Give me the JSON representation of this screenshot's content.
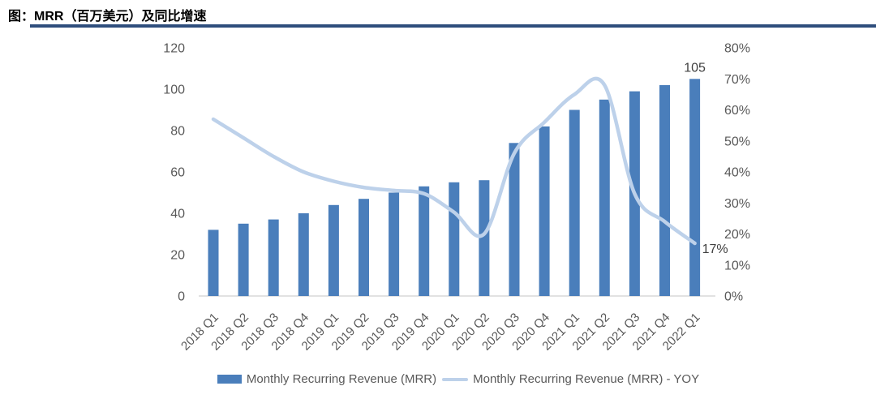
{
  "header": {
    "title": "图：MRR（百万美元）及同比增速"
  },
  "colors": {
    "bar": "#4a7ebb",
    "line": "#bdd1ea",
    "header_rule": "#2e4d7c",
    "axis_text": "#595959",
    "data_label_text": "#404040",
    "baseline": "#d9d9d9",
    "title_text": "#000000"
  },
  "chart_data": {
    "type": "combo-bar-line",
    "title": "图：MRR（百万美元）及同比增速",
    "xlabel": "",
    "ylabel_left": "",
    "ylabel_right": "",
    "gridlines": false,
    "smooth_line": true,
    "legend_position": "bottom",
    "categories": [
      "2018 Q1",
      "2018 Q2",
      "2018 Q3",
      "2018 Q4",
      "2019 Q1",
      "2019 Q2",
      "2019 Q3",
      "2019 Q4",
      "2020 Q1",
      "2020 Q2",
      "2020 Q3",
      "2020 Q4",
      "2021 Q1",
      "2021 Q2",
      "2021 Q3",
      "2021 Q4",
      "2022 Q1"
    ],
    "series": [
      {
        "name": "Monthly Recurring Revenue (MRR)",
        "type": "bar",
        "axis": "left",
        "unit": "millions USD",
        "values": [
          32,
          35,
          37,
          40,
          44,
          47,
          50,
          53,
          55,
          56,
          74,
          82,
          90,
          95,
          99,
          102,
          105
        ]
      },
      {
        "name": "Monthly Recurring Revenue (MRR) - YOY",
        "type": "line",
        "axis": "right",
        "unit": "%",
        "values": [
          57,
          51,
          45,
          40,
          37,
          35,
          34,
          33,
          27,
          20,
          46,
          56,
          65,
          68,
          33,
          24,
          17
        ]
      }
    ],
    "left_axis": {
      "min": 0,
      "max": 120,
      "step": 20,
      "ticks": [
        "0",
        "20",
        "40",
        "60",
        "80",
        "100",
        "120"
      ]
    },
    "right_axis": {
      "min": 0,
      "max": 80,
      "step": 10,
      "ticks": [
        "0%",
        "10%",
        "20%",
        "30%",
        "40%",
        "50%",
        "60%",
        "70%",
        "80%"
      ]
    },
    "annotations": {
      "last_bar_label": "105",
      "last_line_label": "17%"
    }
  },
  "legend": {
    "items": [
      {
        "label": "Monthly Recurring Revenue (MRR)",
        "swatch": "bar"
      },
      {
        "label": "Monthly Recurring Revenue (MRR) - YOY",
        "swatch": "line"
      }
    ]
  }
}
